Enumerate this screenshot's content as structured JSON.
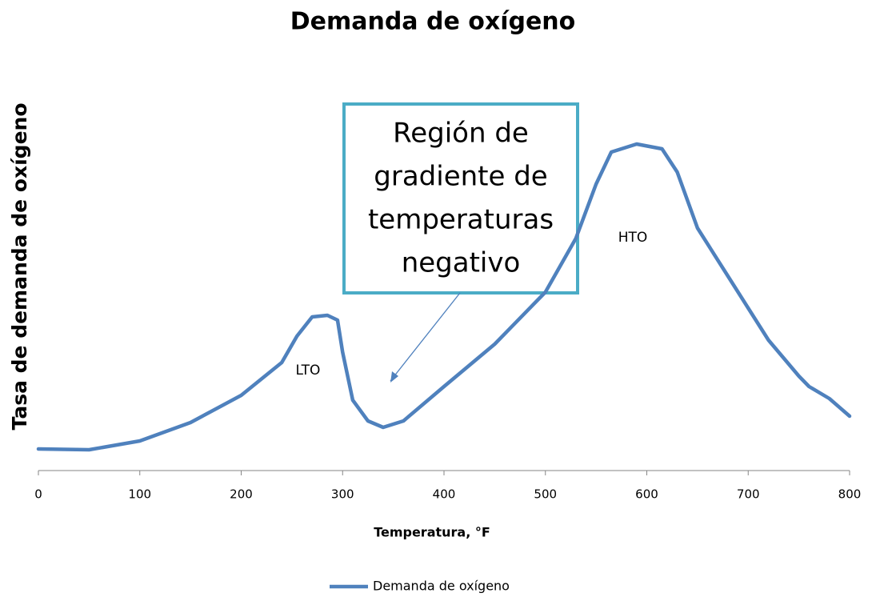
{
  "chart_data": {
    "type": "line",
    "title": "Demanda de oxígeno",
    "x_label": "Temperatura, °F",
    "y_label": "Tasa de demanda de oxígeno",
    "x": [
      0,
      50,
      100,
      150,
      200,
      240,
      255,
      270,
      285,
      295,
      300,
      310,
      325,
      340,
      360,
      400,
      450,
      500,
      530,
      550,
      565,
      590,
      615,
      630,
      650,
      680,
      700,
      720,
      750,
      760,
      780,
      800
    ],
    "series": [
      {
        "name": "Demanda de oxígeno",
        "color": "#4f81bd",
        "values": [
          5.4,
          5.2,
          7.4,
          12,
          18.8,
          27,
          33.6,
          38.4,
          38.8,
          37.6,
          29.6,
          17.6,
          12.4,
          10.8,
          12.4,
          21,
          31.6,
          44.6,
          58,
          71.6,
          79.6,
          81.6,
          80.4,
          74.6,
          60.6,
          48.6,
          40.6,
          32.6,
          23.6,
          21,
          18,
          13.6
        ]
      }
    ],
    "xlim": [
      0,
      800
    ],
    "xticks": [
      0,
      100,
      200,
      300,
      400,
      500,
      600,
      700,
      800
    ],
    "ylim": [
      0,
      100
    ],
    "annotations": {
      "lto": "LTO",
      "hto": "HTO",
      "box": [
        "Región de",
        "gradiente de",
        "temperaturas",
        "negativo"
      ]
    },
    "legend": "bottom"
  }
}
